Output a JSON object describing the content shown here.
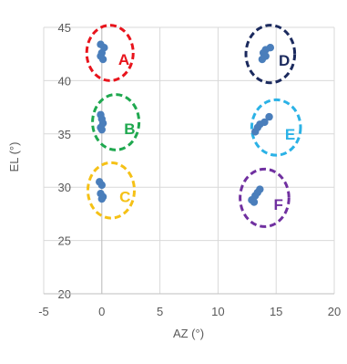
{
  "chart_data": {
    "type": "scatter",
    "xlabel": "AZ (°)",
    "ylabel": "EL (°)",
    "xlim": [
      -5,
      20
    ],
    "ylim": [
      20,
      45
    ],
    "xticks": [
      "-5",
      "0",
      "5",
      "10",
      "15",
      "20"
    ],
    "yticks": [
      "20",
      "25",
      "30",
      "35",
      "40",
      "45"
    ],
    "grid": "on",
    "marker_color": "#4a7ebb",
    "series": [
      {
        "points": [
          {
            "x": -0.1,
            "y": 43.4
          },
          {
            "x": 0.2,
            "y": 43.1
          },
          {
            "x": 0.0,
            "y": 42.6
          },
          {
            "x": -0.1,
            "y": 42.3
          },
          {
            "x": 0.1,
            "y": 42.0
          },
          {
            "x": -0.1,
            "y": 36.8
          },
          {
            "x": 0.0,
            "y": 36.4
          },
          {
            "x": 0.1,
            "y": 36.0
          },
          {
            "x": -0.1,
            "y": 35.6
          },
          {
            "x": 0.0,
            "y": 35.4
          },
          {
            "x": -0.2,
            "y": 30.5
          },
          {
            "x": 0.0,
            "y": 30.2
          },
          {
            "x": -0.1,
            "y": 29.4
          },
          {
            "x": 0.1,
            "y": 29.1
          },
          {
            "x": 0.0,
            "y": 28.9
          },
          {
            "x": 14.5,
            "y": 43.1
          },
          {
            "x": 14.1,
            "y": 42.9
          },
          {
            "x": 13.9,
            "y": 42.6
          },
          {
            "x": 14.1,
            "y": 42.3
          },
          {
            "x": 13.8,
            "y": 42.0
          },
          {
            "x": 14.4,
            "y": 36.6
          },
          {
            "x": 14.0,
            "y": 36.1
          },
          {
            "x": 13.6,
            "y": 35.9
          },
          {
            "x": 13.4,
            "y": 35.6
          },
          {
            "x": 13.2,
            "y": 35.2
          },
          {
            "x": 13.6,
            "y": 29.8
          },
          {
            "x": 13.4,
            "y": 29.5
          },
          {
            "x": 13.2,
            "y": 29.2
          },
          {
            "x": 12.9,
            "y": 28.8
          },
          {
            "x": 13.1,
            "y": 28.6
          }
        ]
      }
    ],
    "groups": [
      {
        "label": "A",
        "color": "#e8141c",
        "cx": 0.7,
        "cy": 42.6,
        "rx": 2.0,
        "ry": 2.6
      },
      {
        "label": "B",
        "color": "#1fa84f",
        "cx": 1.2,
        "cy": 36.1,
        "rx": 2.0,
        "ry": 2.6
      },
      {
        "label": "C",
        "color": "#f5c116",
        "cx": 0.8,
        "cy": 29.7,
        "rx": 2.0,
        "ry": 2.6
      },
      {
        "label": "D",
        "color": "#1b2a5e",
        "cx": 14.5,
        "cy": 42.5,
        "rx": 2.1,
        "ry": 2.7
      },
      {
        "label": "E",
        "color": "#2bb2e6",
        "cx": 15.0,
        "cy": 35.6,
        "rx": 2.1,
        "ry": 2.6
      },
      {
        "label": "F",
        "color": "#7030a0",
        "cx": 14.0,
        "cy": 29.0,
        "rx": 2.1,
        "ry": 2.7
      }
    ]
  }
}
